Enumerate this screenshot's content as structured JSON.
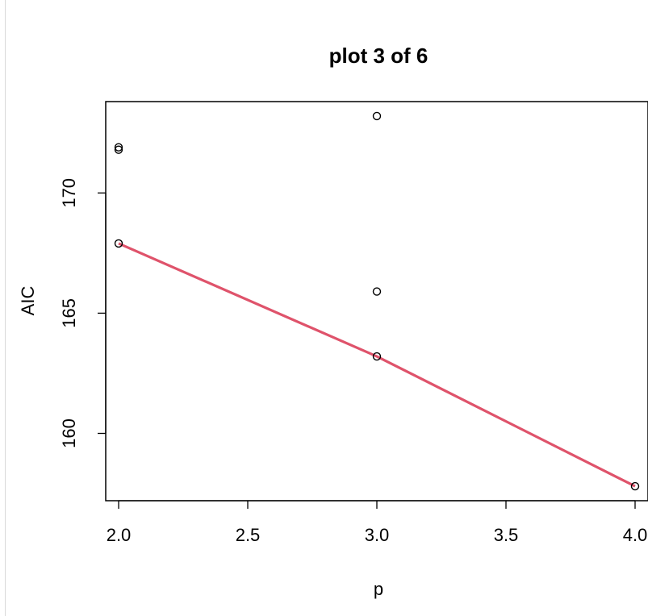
{
  "chart_data": {
    "type": "scatter",
    "title": "plot 3 of 6",
    "xlabel": "p",
    "ylabel": "AIC",
    "xlim": [
      1.95,
      4.05
    ],
    "ylim": [
      157.2,
      173.8
    ],
    "xticks": [
      2.0,
      2.5,
      3.0,
      3.5,
      4.0
    ],
    "xtick_labels": [
      "2.0",
      "2.5",
      "3.0",
      "3.5",
      "4.0"
    ],
    "yticks": [
      160,
      165,
      170
    ],
    "ytick_labels": [
      "160",
      "165",
      "170"
    ],
    "grid": false,
    "points": [
      {
        "x": 2.0,
        "y": 171.9
      },
      {
        "x": 2.0,
        "y": 171.8
      },
      {
        "x": 2.0,
        "y": 167.9
      },
      {
        "x": 3.0,
        "y": 173.2
      },
      {
        "x": 3.0,
        "y": 165.9
      },
      {
        "x": 3.0,
        "y": 163.2
      },
      {
        "x": 4.0,
        "y": 157.8
      }
    ],
    "line": {
      "x": [
        2.0,
        3.0,
        4.0
      ],
      "y": [
        167.9,
        163.2,
        157.8
      ],
      "color": "#DF536B"
    },
    "point_color": "#000000"
  }
}
